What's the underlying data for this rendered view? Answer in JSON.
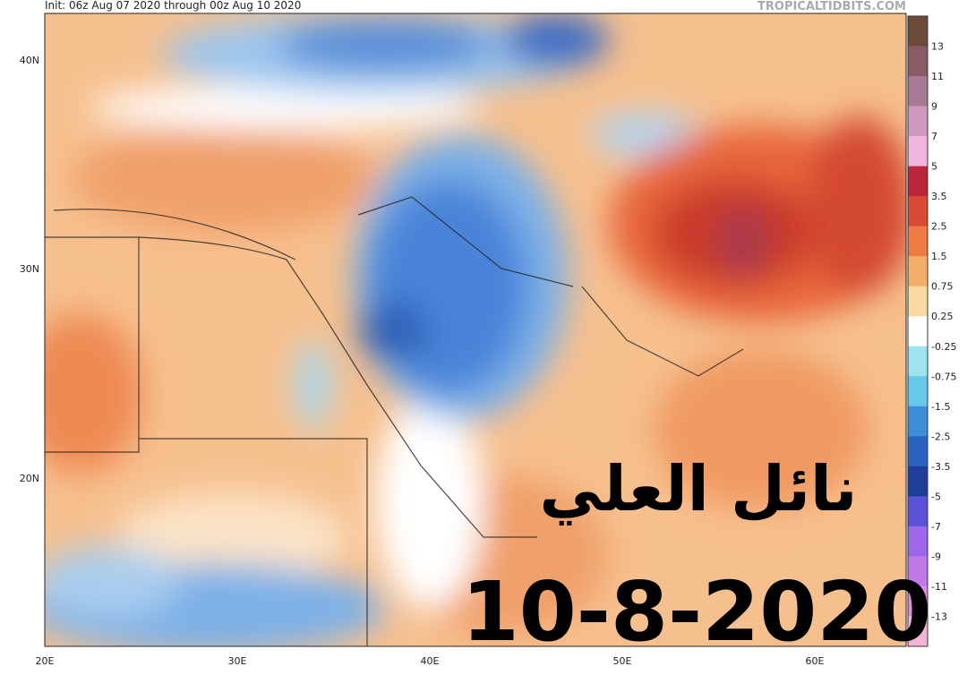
{
  "header": {
    "init": "Init: 06z Aug 07 2020 through 00z Aug 10 2020",
    "source": "TROPICALTIDBITS.COM"
  },
  "map": {
    "latitude_labels": [
      "40N",
      "30N",
      "20N"
    ],
    "longitude_labels": [
      "20E",
      "30E",
      "40E",
      "50E",
      "60E"
    ]
  },
  "colorbar": {
    "labels": [
      "13",
      "11",
      "9",
      "7",
      "5",
      "3.5",
      "2.5",
      "1.5",
      "0.75",
      "0.25",
      "-0.25",
      "-0.75",
      "-1.5",
      "-2.5",
      "-3.5",
      "-5",
      "-7",
      "-9",
      "-11",
      "-13"
    ]
  },
  "overlay": {
    "name": "نائل العلي",
    "date": "10-8-2020"
  }
}
